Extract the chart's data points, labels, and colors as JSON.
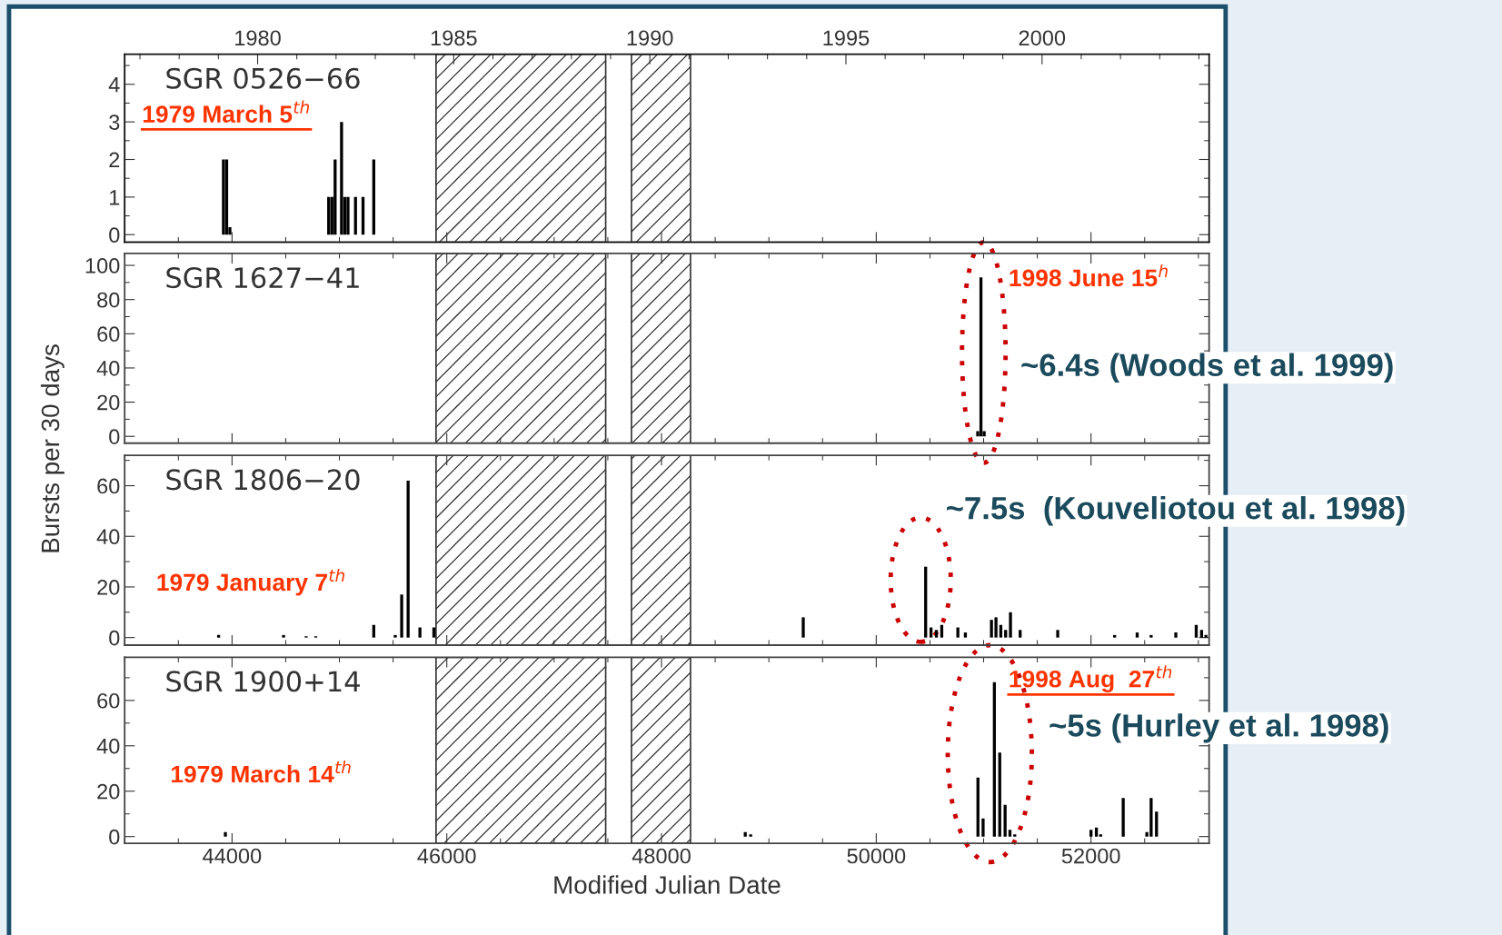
{
  "chart_data": [
    {
      "type": "bar",
      "title": "SGR 0526−66",
      "color": "#000000",
      "x": [
        43920,
        43950,
        43980,
        44900,
        44930,
        44960,
        45020,
        45050,
        45080,
        45150,
        45220,
        45320
      ],
      "values": [
        2,
        2,
        0.2,
        1,
        1,
        2,
        3,
        1,
        1,
        1,
        1,
        2
      ],
      "xlim": [
        43000,
        53100
      ],
      "ylim": [
        -0.2,
        4.8
      ],
      "yticks": [
        0,
        1,
        2,
        3,
        4
      ],
      "x2lim": [
        1976.61,
        2004.26
      ],
      "x2ticks": [
        1980,
        1985,
        1990,
        1995,
        2000
      ],
      "tick_labels": "y",
      "bands": [
        {
          "axis": "x",
          "from": 45900,
          "to": 47480
        },
        {
          "axis": "x",
          "from": 47720,
          "to": 48270
        }
      ],
      "annotations": [
        "1979 March 5$^{th}$"
      ]
    },
    {
      "type": "bar",
      "title": "SGR 1627−41",
      "color": "#000000",
      "ylabel": "Bursts per 30 days",
      "x": [
        50945,
        50975,
        51005
      ],
      "values": [
        3,
        93,
        3
      ],
      "xlim": [
        43000,
        53100
      ],
      "ylim": [
        -4,
        107
      ],
      "yticks": [
        0,
        20,
        40,
        60,
        80,
        100
      ],
      "tick_labels": "y",
      "bands": [
        {
          "axis": "x",
          "from": 45900,
          "to": 47480
        },
        {
          "axis": "x",
          "from": 47720,
          "to": 48270
        }
      ],
      "annotations": [
        "1998 June 15$^{h}$",
        "~6.4s (Woods et al. 1999)"
      ]
    },
    {
      "type": "bar",
      "title": "SGR 1806−20",
      "color": "#000000",
      "x": [
        43875,
        44480,
        44690,
        44780,
        45320,
        45520,
        45580,
        45640,
        45750,
        45880,
        49320,
        50460,
        50510,
        50560,
        50610,
        50760,
        50830,
        51073,
        51115,
        51160,
        51205,
        51250,
        51340,
        51690,
        52220,
        52430,
        52560,
        52790,
        52980,
        53030,
        53070
      ],
      "values": [
        1,
        1,
        0.5,
        0.5,
        5,
        1,
        17,
        62,
        4,
        4,
        8,
        28,
        4,
        3,
        5,
        4,
        2,
        7,
        8,
        5,
        3,
        10,
        3,
        3,
        1,
        2,
        1,
        2,
        5,
        3,
        1
      ],
      "xlim": [
        43000,
        53100
      ],
      "ylim": [
        -3,
        72
      ],
      "yticks": [
        0,
        20,
        40,
        60
      ],
      "tick_labels": "y",
      "bands": [
        {
          "axis": "x",
          "from": 45900,
          "to": 47480
        },
        {
          "axis": "x",
          "from": 47720,
          "to": 48270
        }
      ],
      "annotations": [
        "1979 January 7$^{th}$",
        "~7.5s  (Kouveliotou et al. 1998)"
      ]
    },
    {
      "type": "bar",
      "title": "SGR 1900+14",
      "color": "#000000",
      "xlabel": "Modified Julian Date",
      "x": [
        43938,
        48780,
        48830,
        50947,
        50995,
        51100,
        51150,
        51200,
        51245,
        51290,
        52000,
        52050,
        52090,
        52300,
        52520,
        52560,
        52610
      ],
      "values": [
        2,
        2,
        1,
        26,
        8,
        68,
        37,
        14,
        3,
        1,
        3,
        4,
        1,
        17,
        2,
        17,
        11
      ],
      "xlim": [
        43000,
        53100
      ],
      "ylim": [
        -3,
        79
      ],
      "xticks": [
        44000,
        46000,
        48000,
        50000,
        52000
      ],
      "yticks": [
        0,
        20,
        40,
        60
      ],
      "bands": [
        {
          "axis": "x",
          "from": 45900,
          "to": 47480
        },
        {
          "axis": "x",
          "from": 47720,
          "to": 48270
        }
      ],
      "annotations": [
        "1998 Aug  27$^{th}$",
        "~5s (Hurley et al. 1998)",
        "1979 March 14$^{th}$"
      ]
    }
  ]
}
